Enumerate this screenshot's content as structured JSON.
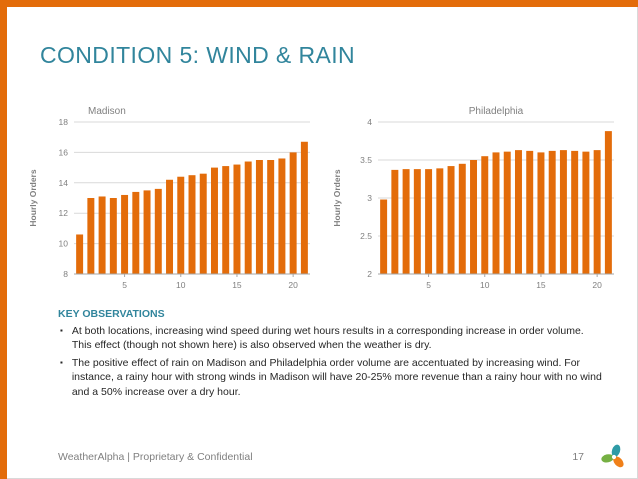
{
  "slide": {
    "title": "CONDITION 5: WIND & RAIN",
    "footer": "WeatherAlpha | Proprietary & Confidential",
    "page_number": "17"
  },
  "observations": {
    "heading": "KEY OBSERVATIONS",
    "bullet_char": "▪",
    "bullets": [
      "At both locations, increasing wind speed during wet hours results in a corresponding increase in order volume. This effect (though not shown here) is also observed when the weather is dry.",
      "The positive effect of rain on Madison and Philadelphia order volume are accentuated by increasing wind. For instance, a rainy hour with strong winds in Madison will have 20-25% more revenue than a rainy hour with no wind and a 50% increase over a dry hour."
    ]
  },
  "colors": {
    "accent_orange": "#E36C0A",
    "accent_teal": "#31859C",
    "text_gray": "#7F7F7F",
    "gridline": "#D9D9D9",
    "axis": "#A6A6A6",
    "logo_teal": "#2E9BA6",
    "logo_green": "#76B043",
    "logo_orange": "#F08019"
  },
  "chart_data": [
    {
      "type": "bar",
      "title": "Madison",
      "title_align": "left",
      "xlabel": "",
      "ylabel": "Hourly Orders",
      "ylim": [
        8,
        18
      ],
      "yticks": [
        8,
        10,
        12,
        14,
        16,
        18
      ],
      "xticks": [
        5,
        10,
        15,
        20
      ],
      "grid": true,
      "legend": false,
      "bar_color": "#E36C0A",
      "x": [
        1,
        2,
        3,
        4,
        5,
        6,
        7,
        8,
        9,
        10,
        11,
        12,
        13,
        14,
        15,
        16,
        17,
        18,
        19,
        20,
        21
      ],
      "values": [
        10.6,
        13.0,
        13.1,
        13.0,
        13.2,
        13.4,
        13.5,
        13.6,
        14.2,
        14.4,
        14.5,
        14.6,
        15.0,
        15.1,
        15.2,
        15.4,
        15.5,
        15.5,
        15.6,
        16.0,
        16.7
      ]
    },
    {
      "type": "bar",
      "title": "Philadelphia",
      "title_align": "center",
      "xlabel": "",
      "ylabel": "Hourly Orders",
      "ylim": [
        2,
        4
      ],
      "yticks": [
        2,
        2.5,
        3,
        3.5,
        4
      ],
      "xticks": [
        5,
        10,
        15,
        20
      ],
      "grid": true,
      "legend": false,
      "bar_color": "#E36C0A",
      "x": [
        1,
        2,
        3,
        4,
        5,
        6,
        7,
        8,
        9,
        10,
        11,
        12,
        13,
        14,
        15,
        16,
        17,
        18,
        19,
        20,
        21
      ],
      "values": [
        2.98,
        3.37,
        3.38,
        3.38,
        3.38,
        3.39,
        3.42,
        3.45,
        3.5,
        3.55,
        3.6,
        3.61,
        3.63,
        3.62,
        3.6,
        3.62,
        3.63,
        3.62,
        3.61,
        3.63,
        3.88
      ]
    }
  ]
}
